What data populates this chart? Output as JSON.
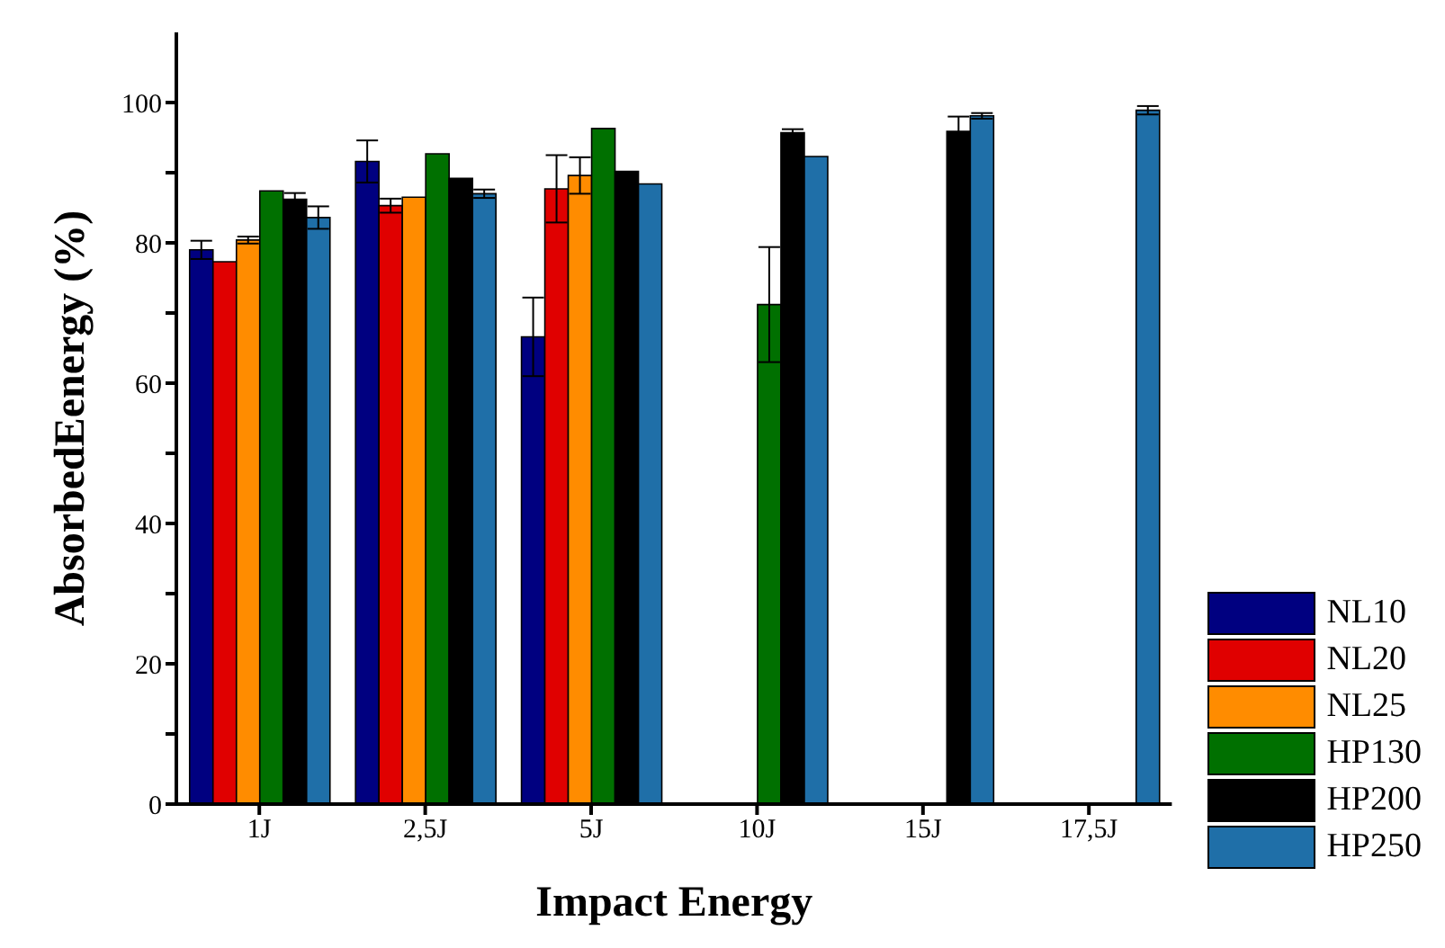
{
  "chart_data": {
    "type": "bar",
    "xlabel": "Impact Energy",
    "ylabel": "AbsorbedEenergy (%)",
    "categories": [
      "1J",
      "2,5J",
      "5J",
      "10J",
      "15J",
      "17,5J"
    ],
    "series": [
      {
        "name": "NL10",
        "color": "#000080",
        "values": [
          79.0,
          91.6,
          66.6,
          null,
          null,
          null
        ],
        "errors": [
          1.3,
          3.0,
          5.6,
          null,
          null,
          null
        ]
      },
      {
        "name": "NL20",
        "color": "#e00000",
        "values": [
          77.3,
          85.3,
          87.7,
          null,
          null,
          null
        ],
        "errors": [
          null,
          1.0,
          4.8,
          null,
          null,
          null
        ]
      },
      {
        "name": "NL25",
        "color": "#ff8c00",
        "values": [
          80.4,
          86.5,
          89.6,
          null,
          null,
          null
        ],
        "errors": [
          0.5,
          null,
          2.6,
          null,
          null,
          null
        ]
      },
      {
        "name": "HP130",
        "color": "#007000",
        "values": [
          87.4,
          92.7,
          96.3,
          71.2,
          null,
          null
        ],
        "errors": [
          null,
          null,
          null,
          8.2,
          null,
          null
        ]
      },
      {
        "name": "HP200",
        "color": "#000000",
        "values": [
          86.2,
          89.2,
          90.2,
          95.7,
          95.9,
          null
        ],
        "errors": [
          0.9,
          null,
          null,
          0.5,
          2.1,
          null
        ]
      },
      {
        "name": "HP250",
        "color": "#1f6fa8",
        "values": [
          83.6,
          87.0,
          88.4,
          92.3,
          98.1,
          98.9
        ],
        "errors": [
          1.6,
          0.6,
          null,
          null,
          0.4,
          0.6
        ]
      }
    ],
    "ylim": [
      0,
      110
    ],
    "yticks": [
      0,
      {
        "value": 10,
        "label": null
      },
      20,
      {
        "value": 30,
        "label": null
      },
      40,
      {
        "value": 50,
        "label": null
      },
      60,
      {
        "value": 70,
        "label": null
      },
      80,
      {
        "value": 90,
        "label": null
      },
      100
    ],
    "grid": false,
    "legend": "right"
  }
}
